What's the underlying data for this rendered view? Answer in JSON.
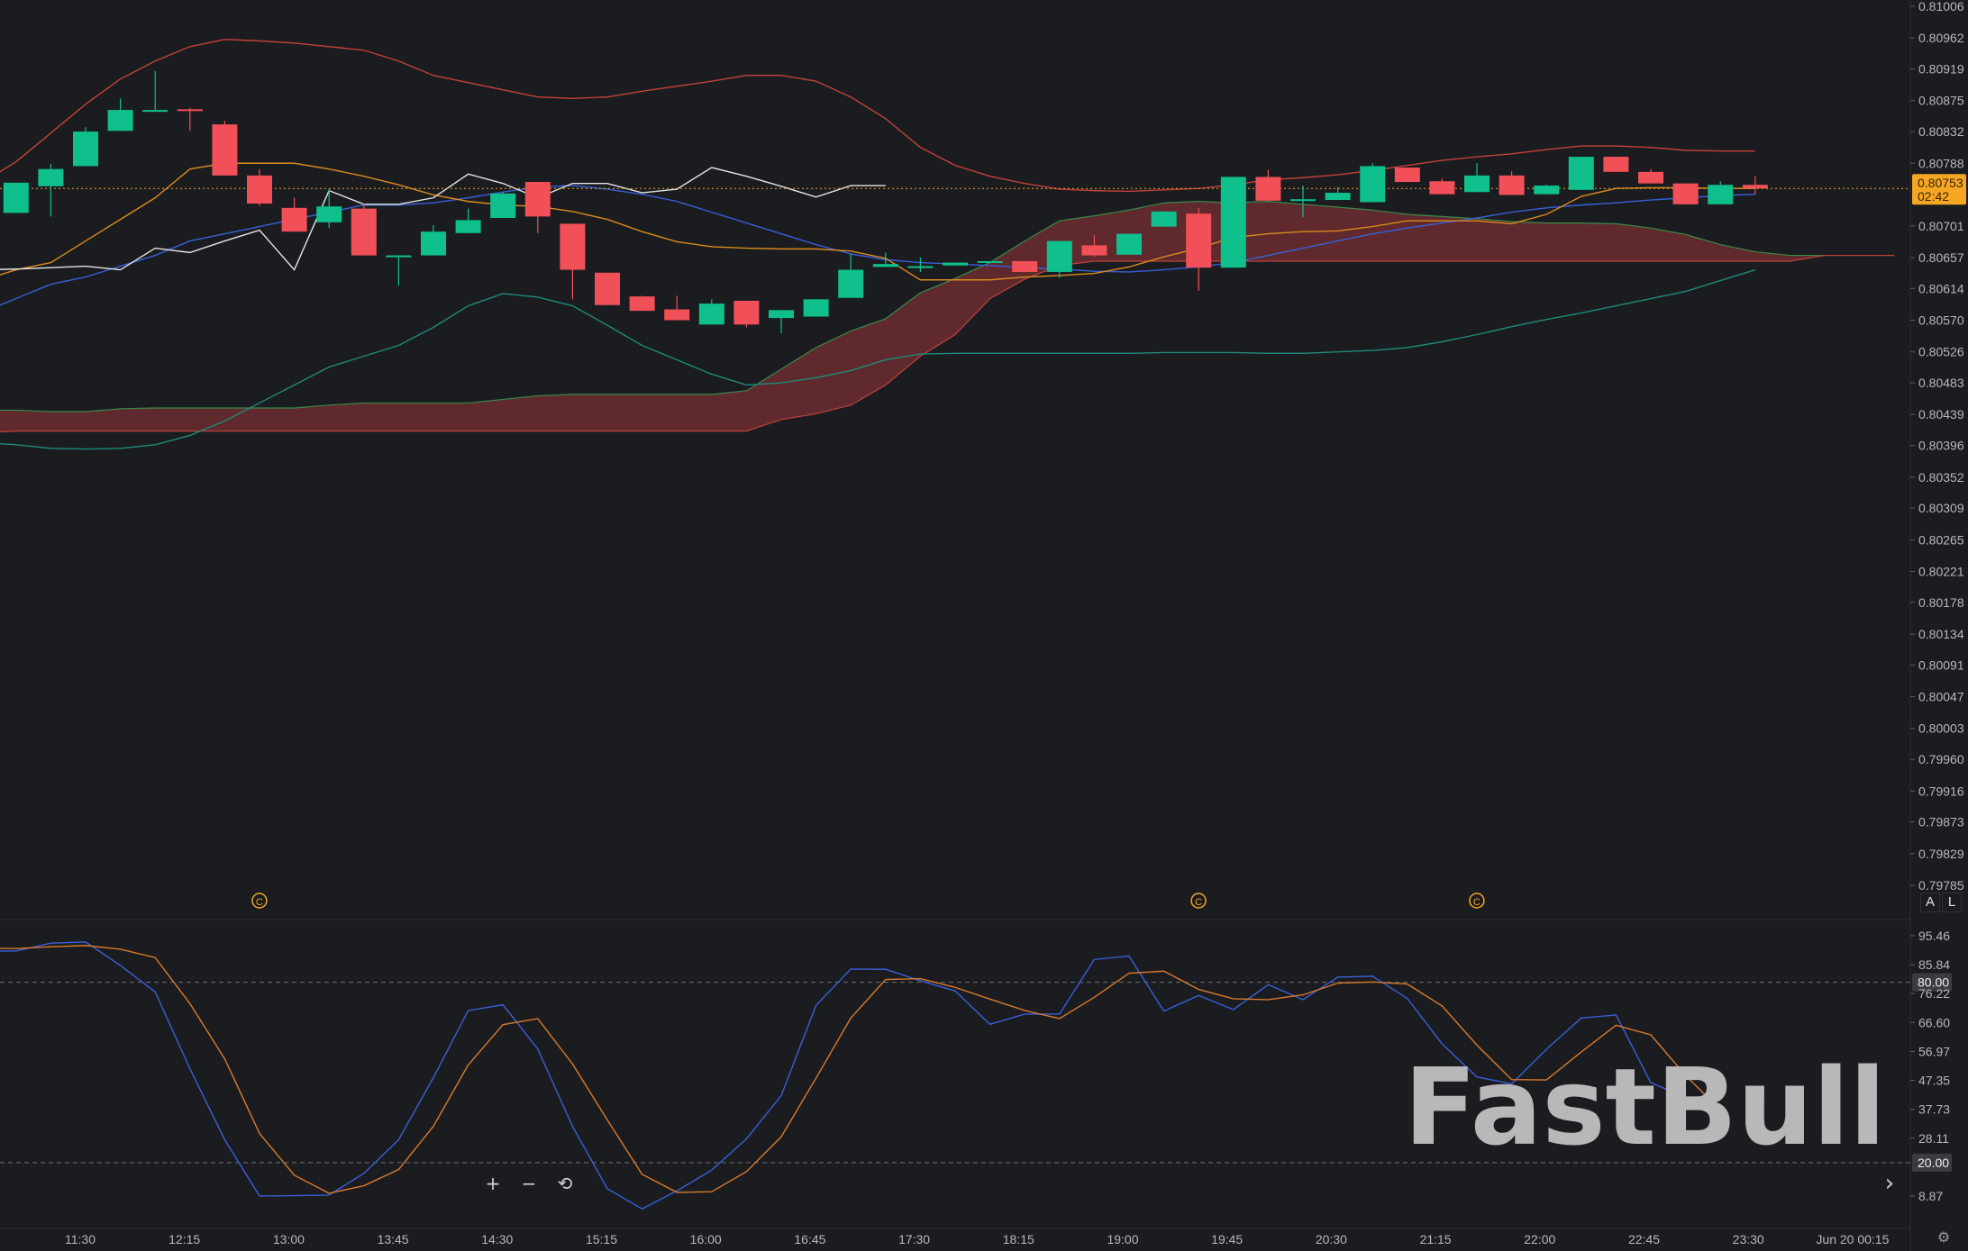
{
  "chart_data": [
    {
      "type": "candlestick",
      "title": "",
      "price_axis": {
        "range": [
          0.79785,
          0.81006
        ],
        "ticks": [
          "0.81006",
          "0.80962",
          "0.80919",
          "0.80875",
          "0.80832",
          "0.80788",
          "0.80701",
          "0.80657",
          "0.80614",
          "0.80570",
          "0.80526",
          "0.80483",
          "0.80439",
          "0.80396",
          "0.80352",
          "0.80309",
          "0.80265",
          "0.80221",
          "0.80178",
          "0.80134",
          "0.80091",
          "0.80047",
          "0.80003",
          "0.79960",
          "0.79916",
          "0.79873",
          "0.79829",
          "0.79785"
        ]
      },
      "current_price": {
        "value": "0.80753",
        "countdown": "02:42",
        "color": "#f5a623"
      },
      "candle_interval_minutes": 15,
      "first_candle_time": "11:00",
      "candles": [
        [
          0.80691,
          0.80716,
          0.80691,
          0.80716
        ],
        [
          0.80719,
          0.80761,
          0.80719,
          0.80761
        ],
        [
          0.80756,
          0.8078,
          0.80714,
          0.80787
        ],
        [
          0.80784,
          0.80832,
          0.80784,
          0.80838
        ],
        [
          0.80833,
          0.80862,
          0.80833,
          0.80878
        ],
        [
          0.80862,
          0.80862,
          0.80862,
          0.80916
        ],
        [
          0.80863,
          0.80862,
          0.80833,
          0.80865
        ],
        [
          0.80842,
          0.80771,
          0.80771,
          0.80847
        ],
        [
          0.80771,
          0.80732,
          0.80729,
          0.8078
        ],
        [
          0.80726,
          0.80693,
          0.80693,
          0.8074
        ],
        [
          0.80706,
          0.80728,
          0.80698,
          0.80753
        ],
        [
          0.80725,
          0.8066,
          0.8066,
          0.80732
        ],
        [
          0.8066,
          0.8066,
          0.80618,
          0.8066
        ],
        [
          0.8066,
          0.80693,
          0.8066,
          0.80702
        ],
        [
          0.80691,
          0.80709,
          0.80691,
          0.80725
        ],
        [
          0.80712,
          0.80746,
          0.80712,
          0.80748
        ],
        [
          0.80762,
          0.80714,
          0.80691,
          0.80762
        ],
        [
          0.80704,
          0.8064,
          0.80599,
          0.80704
        ],
        [
          0.80636,
          0.80591,
          0.80591,
          0.80636
        ],
        [
          0.80603,
          0.80583,
          0.80583,
          0.80604
        ],
        [
          0.80585,
          0.8057,
          0.8057,
          0.80604
        ],
        [
          0.80564,
          0.80593,
          0.80564,
          0.80599
        ],
        [
          0.80597,
          0.80564,
          0.8056,
          0.80597
        ],
        [
          0.80573,
          0.80584,
          0.80552,
          0.80584
        ],
        [
          0.80575,
          0.80599,
          0.80575,
          0.80599
        ],
        [
          0.80601,
          0.8064,
          0.80601,
          0.80662
        ],
        [
          0.80644,
          0.80648,
          0.80644,
          0.80664
        ],
        [
          0.80645,
          0.80645,
          0.80637,
          0.80657
        ],
        [
          0.80646,
          0.8065,
          0.80646,
          0.8065
        ],
        [
          0.8065,
          0.80652,
          0.8065,
          0.80652
        ],
        [
          0.80652,
          0.80637,
          0.80637,
          0.80652
        ],
        [
          0.80637,
          0.8068,
          0.80629,
          0.8068
        ],
        [
          0.80674,
          0.8066,
          0.80658,
          0.80688
        ],
        [
          0.80661,
          0.8069,
          0.80661,
          0.8069
        ],
        [
          0.807,
          0.80721,
          0.807,
          0.80721
        ],
        [
          0.80718,
          0.80643,
          0.80611,
          0.80726
        ],
        [
          0.80643,
          0.80769,
          0.80643,
          0.80769
        ],
        [
          0.80769,
          0.80736,
          0.80736,
          0.80779
        ],
        [
          0.80738,
          0.80738,
          0.80713,
          0.80757
        ],
        [
          0.80737,
          0.80747,
          0.80737,
          0.80755
        ],
        [
          0.80734,
          0.80784,
          0.80734,
          0.80788
        ],
        [
          0.80782,
          0.80762,
          0.80762,
          0.80782
        ],
        [
          0.80763,
          0.80745,
          0.80745,
          0.80767
        ],
        [
          0.80748,
          0.80771,
          0.80748,
          0.80788
        ],
        [
          0.80771,
          0.80744,
          0.80744,
          0.80777
        ],
        [
          0.80745,
          0.80757,
          0.80745,
          0.80758
        ],
        [
          0.80751,
          0.80797,
          0.80751,
          0.80797
        ],
        [
          0.80797,
          0.80776,
          0.80776,
          0.80797
        ],
        [
          0.80776,
          0.8076,
          0.8076,
          0.8078
        ],
        [
          0.8076,
          0.80731,
          0.80731,
          0.8076
        ],
        [
          0.80731,
          0.80758,
          0.80731,
          0.80763
        ],
        [
          0.80758,
          0.80753,
          0.80745,
          0.8077
        ]
      ],
      "overlays": [
        {
          "name": "upper-band",
          "color": "#c3413b",
          "values": [
            0.8076,
            0.8079,
            0.8083,
            0.8087,
            0.80905,
            0.8093,
            0.8095,
            0.8096,
            0.80958,
            0.80955,
            0.8095,
            0.80945,
            0.8093,
            0.8091,
            0.809,
            0.8089,
            0.8088,
            0.80878,
            0.8088,
            0.80888,
            0.80895,
            0.80902,
            0.8091,
            0.8091,
            0.80902,
            0.8088,
            0.8085,
            0.8081,
            0.80785,
            0.8077,
            0.8076,
            0.80752,
            0.8075,
            0.80749,
            0.80751,
            0.80753,
            0.80758,
            0.80765,
            0.80768,
            0.80772,
            0.80778,
            0.80785,
            0.80792,
            0.80797,
            0.80801,
            0.80807,
            0.80812,
            0.80812,
            0.8081,
            0.80806,
            0.80805,
            0.80805
          ]
        },
        {
          "name": "middle-band",
          "color": "#3760d8",
          "values": [
            0.8058,
            0.806,
            0.8062,
            0.8063,
            0.80645,
            0.8066,
            0.8068,
            0.8069,
            0.807,
            0.8071,
            0.8072,
            0.8073,
            0.8073,
            0.80733,
            0.8074,
            0.80748,
            0.80755,
            0.80757,
            0.80752,
            0.80745,
            0.80735,
            0.8072,
            0.80705,
            0.8069,
            0.80675,
            0.80662,
            0.80654,
            0.8065,
            0.80648,
            0.80646,
            0.80643,
            0.80641,
            0.80638,
            0.80637,
            0.8064,
            0.80644,
            0.8065,
            0.8066,
            0.8067,
            0.8068,
            0.8069,
            0.80698,
            0.80705,
            0.80712,
            0.8072,
            0.80726,
            0.8073,
            0.80733,
            0.80737,
            0.8074,
            0.80743,
            0.80745
          ]
        },
        {
          "name": "lower-band",
          "color": "#1f8a7a",
          "values": [
            0.804,
            0.80397,
            0.80392,
            0.80391,
            0.80392,
            0.80397,
            0.8041,
            0.8043,
            0.80455,
            0.8048,
            0.80505,
            0.8052,
            0.80535,
            0.8056,
            0.8059,
            0.80607,
            0.80602,
            0.8059,
            0.80563,
            0.80535,
            0.80515,
            0.80495,
            0.8048,
            0.80483,
            0.8049,
            0.805,
            0.80515,
            0.80523,
            0.80524,
            0.80524,
            0.80524,
            0.80524,
            0.80524,
            0.80524,
            0.80525,
            0.80525,
            0.80525,
            0.80524,
            0.80524,
            0.80526,
            0.80528,
            0.80532,
            0.8054,
            0.8055,
            0.80561,
            0.80571,
            0.8058,
            0.8059,
            0.806,
            0.8061,
            0.80625,
            0.8064
          ]
        },
        {
          "name": "ema-orange",
          "color": "#d98b1c",
          "values": [
            0.80625,
            0.8064,
            0.8065,
            0.8068,
            0.8071,
            0.8074,
            0.8078,
            0.80788,
            0.80788,
            0.80788,
            0.8078,
            0.8077,
            0.80758,
            0.80744,
            0.80735,
            0.8073,
            0.80728,
            0.80721,
            0.8071,
            0.80693,
            0.80679,
            0.80672,
            0.8067,
            0.80669,
            0.80669,
            0.80666,
            0.80656,
            0.80626,
            0.80626,
            0.80626,
            0.8063,
            0.80632,
            0.80635,
            0.80644,
            0.80658,
            0.8067,
            0.80685,
            0.8069,
            0.80693,
            0.80694,
            0.807,
            0.80708,
            0.80708,
            0.80708,
            0.80704,
            0.80717,
            0.80742,
            0.80753,
            0.80754,
            0.80754,
            0.80753,
            0.80753
          ]
        },
        {
          "name": "white-line",
          "color": "#e4e4e4",
          "values": [
            0.8064,
            0.80641,
            0.80643,
            0.80645,
            0.8064,
            0.8067,
            0.80664,
            0.8068,
            0.80695,
            0.8064,
            0.8075,
            0.80731,
            0.80731,
            0.8074,
            0.80773,
            0.8076,
            0.8074,
            0.8076,
            0.8076,
            0.80747,
            0.80752,
            0.80782,
            0.8077,
            0.80756,
            0.80741,
            0.80757,
            0.80757
          ]
        }
      ],
      "cloud": {
        "color_fill": "#6b2b30",
        "line_a_color": "#3a8a4a",
        "line_b_color": "#c0413c",
        "span_a": [
          0.80445,
          0.80445,
          0.80443,
          0.80443,
          0.80447,
          0.80448,
          0.80448,
          0.80448,
          0.80448,
          0.80448,
          0.80452,
          0.80455,
          0.80455,
          0.80455,
          0.80455,
          0.8046,
          0.80465,
          0.80467,
          0.80467,
          0.80467,
          0.80467,
          0.80467,
          0.80472,
          0.80502,
          0.80532,
          0.80555,
          0.80572,
          0.80608,
          0.80628,
          0.8065,
          0.8068,
          0.80708,
          0.80715,
          0.80723,
          0.80733,
          0.80735,
          0.80733,
          0.80735,
          0.80731,
          0.80727,
          0.80723,
          0.80717,
          0.80714,
          0.80711,
          0.80707,
          0.80705,
          0.80705,
          0.80704,
          0.80698,
          0.80689,
          0.80675,
          0.80665,
          0.8066,
          0.8066,
          0.8066,
          0.8066
        ],
        "span_b": [
          0.80414,
          0.80416,
          0.80416,
          0.80416,
          0.80416,
          0.80416,
          0.80416,
          0.80416,
          0.80416,
          0.80416,
          0.80416,
          0.80416,
          0.80416,
          0.80416,
          0.80416,
          0.80416,
          0.80416,
          0.80416,
          0.80416,
          0.80416,
          0.80416,
          0.80416,
          0.80416,
          0.80432,
          0.8044,
          0.80452,
          0.8048,
          0.8052,
          0.8055,
          0.806,
          0.80627,
          0.80646,
          0.80652,
          0.80652,
          0.80652,
          0.80652,
          0.80652,
          0.80652,
          0.80652,
          0.80652,
          0.80652,
          0.80652,
          0.80652,
          0.80652,
          0.80652,
          0.80652,
          0.80652,
          0.80652,
          0.80652,
          0.80652,
          0.80652,
          0.80652,
          0.80652,
          0.8066,
          0.8066,
          0.8066
        ]
      },
      "event_markers": [
        {
          "label": "C",
          "time": "13:00"
        },
        {
          "label": "C",
          "time": "19:45"
        },
        {
          "label": "C",
          "time": "21:45"
        }
      ],
      "marker_color": "#f5a623",
      "up_color": "#0fbf8c",
      "down_color": "#f25058"
    },
    {
      "type": "line",
      "title": "",
      "axis": {
        "range": [
          3.0,
          100.0
        ],
        "ticks": [
          "95.46",
          "85.84",
          "76.22",
          "66.60",
          "56.97",
          "47.35",
          "37.73",
          "28.11",
          "8.87"
        ]
      },
      "levels": [
        {
          "value": 80.0,
          "label": "80.00"
        },
        {
          "value": 20.0,
          "label": "20.00"
        }
      ],
      "series": [
        {
          "color": "#3a5fd8",
          "values": [
            90.4,
            90.4,
            93.0,
            93.4,
            85.6,
            76.8,
            51.2,
            27.6,
            8.9,
            9.0,
            9.2,
            16.4,
            27.6,
            48.3,
            70.6,
            72.5,
            57.8,
            32.0,
            11.3,
            4.6,
            10.6,
            17.5,
            27.9,
            42.3,
            72.3,
            84.4,
            84.3,
            80.5,
            77.1,
            66.0,
            69.4,
            69.4,
            87.6,
            88.7,
            70.4,
            75.6,
            70.9,
            79.2,
            74.2,
            81.7,
            82.0,
            74.6,
            59.5,
            48.5,
            46.2,
            57.7,
            68.1,
            69.1,
            46.6,
            41.7,
            36.4
          ]
        },
        {
          "color": "#d97a2b",
          "values": [
            91.4,
            91.2,
            91.8,
            92.2,
            91.0,
            88.2,
            72.9,
            54.5,
            29.7,
            15.8,
            9.8,
            12.3,
            17.7,
            32.1,
            52.5,
            65.9,
            67.9,
            52.8,
            34.2,
            16.1,
            10.1,
            10.3,
            17.0,
            28.6,
            48.1,
            68.1,
            80.9,
            81.2,
            78.3,
            74.4,
            70.6,
            67.9,
            75.0,
            83.0,
            83.7,
            77.6,
            74.5,
            74.2,
            75.8,
            79.7,
            80.1,
            79.4,
            72.1,
            59.1,
            47.6,
            47.5,
            56.8,
            65.7,
            62.5,
            49.0,
            37.5
          ]
        }
      ]
    }
  ],
  "time_axis": {
    "labels": [
      "11:30",
      "12:15",
      "13:00",
      "13:45",
      "14:30",
      "15:15",
      "16:00",
      "16:45",
      "17:30",
      "18:15",
      "19:00",
      "19:45",
      "20:30",
      "21:15",
      "22:00",
      "22:45",
      "23:30",
      "Jun 20 00:15"
    ]
  },
  "price_scale_buttons": {
    "auto": "A",
    "log": "L"
  },
  "controls": {
    "zoom_in": "+",
    "zoom_out": "−",
    "reset": "⟲",
    "scroll_right": "›"
  },
  "icons": {
    "settings": "gear-icon"
  },
  "watermark": "FastBull"
}
